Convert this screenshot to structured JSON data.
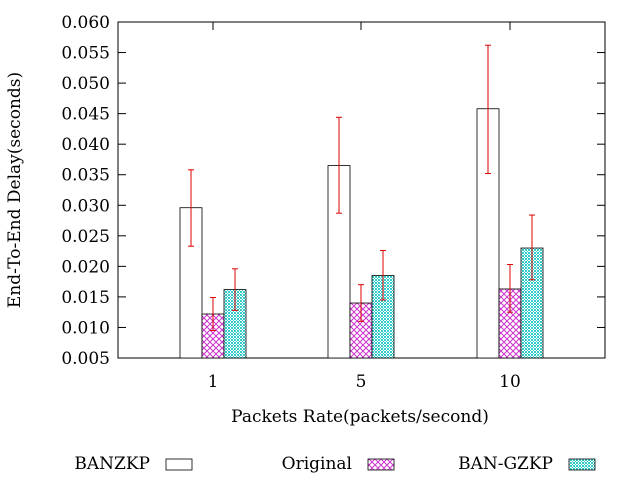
{
  "chart_data": {
    "type": "bar",
    "xlabel": "Packets Rate(packets/second)",
    "ylabel": "End-To-End Delay(seconds)",
    "ylim": [
      0.005,
      0.06
    ],
    "yticks": [
      "0.005",
      "0.010",
      "0.015",
      "0.020",
      "0.025",
      "0.030",
      "0.035",
      "0.040",
      "0.045",
      "0.050",
      "0.055",
      "0.060"
    ],
    "categories": [
      "1",
      "5",
      "10"
    ],
    "legend_position": "bottom",
    "series": [
      {
        "name": "BANZKP",
        "pattern": "empty",
        "color": "#000000",
        "values": [
          0.0296,
          0.0365,
          0.0458
        ],
        "err_low": [
          0.0233,
          0.0287,
          0.0352
        ],
        "err_high": [
          0.0358,
          0.0444,
          0.0562
        ]
      },
      {
        "name": "Original",
        "pattern": "crosshatch",
        "color": "#cc33cc",
        "values": [
          0.0122,
          0.014,
          0.0163
        ],
        "err_low": [
          0.0095,
          0.011,
          0.0125
        ],
        "err_high": [
          0.0149,
          0.017,
          0.0203
        ]
      },
      {
        "name": "BAN-GZKP",
        "pattern": "dots",
        "color": "#33cccc",
        "values": [
          0.0162,
          0.0185,
          0.023
        ],
        "err_low": [
          0.0128,
          0.0145,
          0.0178
        ],
        "err_high": [
          0.0196,
          0.0226,
          0.0284
        ]
      }
    ],
    "errorbar_color": "#dd0000"
  }
}
